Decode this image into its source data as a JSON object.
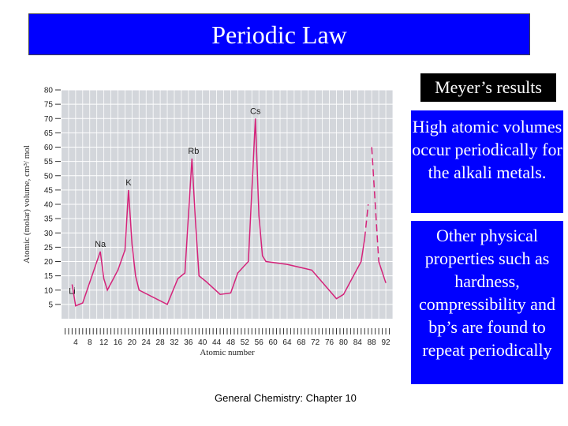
{
  "slide": {
    "title": "Periodic Law",
    "meyer_label": "Meyer’s results",
    "alkali_text": "High atomic volumes occur periodically for the alkali metals.",
    "props_text": "Other physical properties such as hardness, compressibility and bp’s are found to repeat periodically",
    "footer": "General Chemistry: Chapter 10"
  },
  "colors": {
    "title_bg": "#0000ff",
    "line": "#d4237a",
    "plot_bg": "#d3d6db",
    "grid": "#ffffff"
  },
  "chart_data": {
    "type": "line",
    "xlabel": "Atomic number",
    "ylabel": "Atomic (molar) volume, cm³/ mol",
    "xlim": [
      0,
      94
    ],
    "ylim": [
      0,
      80
    ],
    "grid": true,
    "x_ticks": [
      4,
      8,
      12,
      16,
      20,
      24,
      28,
      32,
      36,
      40,
      44,
      48,
      52,
      56,
      60,
      64,
      68,
      72,
      76,
      80,
      84,
      88,
      92
    ],
    "y_ticks": [
      5,
      10,
      15,
      20,
      25,
      30,
      35,
      40,
      45,
      50,
      55,
      60,
      65,
      70,
      75,
      80
    ],
    "series": [
      {
        "values": [
          [
            3,
            12
          ],
          [
            4,
            4.5
          ],
          [
            5,
            5
          ],
          [
            6,
            5.5
          ],
          [
            11,
            23.5
          ],
          [
            12,
            14
          ],
          [
            13,
            10
          ],
          [
            16,
            17
          ],
          [
            18,
            24
          ],
          [
            19,
            45
          ],
          [
            20,
            26
          ],
          [
            21,
            15
          ],
          [
            22,
            10
          ],
          [
            30,
            5
          ],
          [
            33,
            14
          ],
          [
            35,
            16
          ],
          [
            37,
            56
          ],
          [
            38,
            34
          ],
          [
            39,
            15
          ],
          [
            41,
            13
          ],
          [
            45,
            8.5
          ],
          [
            48,
            9
          ],
          [
            50,
            16
          ],
          [
            53,
            20
          ],
          [
            55,
            70
          ],
          [
            56,
            36
          ],
          [
            57,
            22
          ],
          [
            58,
            20
          ],
          [
            64,
            19
          ],
          [
            71,
            17
          ],
          [
            78,
            7
          ],
          [
            80,
            8.5
          ],
          [
            85,
            20
          ],
          [
            86,
            28
          ]
        ],
        "dashed": [
          [
            86,
            28
          ],
          [
            87,
            40
          ]
        ]
      },
      {
        "values": [
          [
            90,
            20
          ],
          [
            92,
            12.5
          ]
        ],
        "dashed": [
          [
            88,
            60
          ],
          [
            90,
            20
          ]
        ]
      }
    ],
    "annotations": [
      {
        "text": "Li",
        "x": 3,
        "y": 12
      },
      {
        "text": "Na",
        "x": 11,
        "y": 23.5
      },
      {
        "text": "K",
        "x": 19,
        "y": 45
      },
      {
        "text": "Rb",
        "x": 37,
        "y": 56
      },
      {
        "text": "Cs",
        "x": 55,
        "y": 70
      }
    ]
  }
}
